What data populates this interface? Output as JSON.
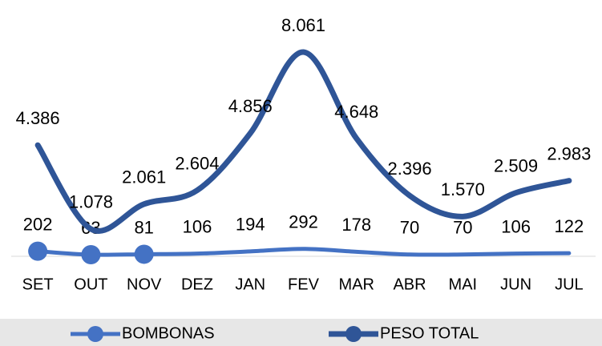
{
  "chart_data": {
    "type": "line",
    "categories": [
      "SET",
      "OUT",
      "NOV",
      "DEZ",
      "JAN",
      "FEV",
      "MAR",
      "ABR",
      "MAI",
      "JUN",
      "JUL"
    ],
    "series": [
      {
        "name": "BOMBONAS",
        "color": "#4472c4",
        "markers": [
          0,
          1,
          2
        ],
        "values": [
          202,
          63,
          81,
          106,
          194,
          292,
          178,
          70,
          70,
          106,
          122
        ]
      },
      {
        "name": "PESO TOTAL",
        "color": "#2f5597",
        "values": [
          4386,
          1078,
          2061,
          2604,
          4856,
          8061,
          4648,
          2396,
          1570,
          2509,
          2983
        ],
        "value_labels": [
          "4.386",
          "1.078",
          "2.061",
          "2.604",
          "4.856",
          "8.061",
          "4.648",
          "2.396",
          "1.570",
          "2.509",
          "2.983"
        ]
      }
    ],
    "legend": "bottom"
  }
}
